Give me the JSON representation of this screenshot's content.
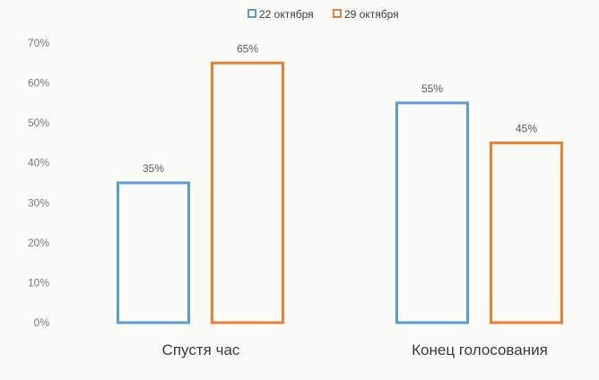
{
  "chart_data": {
    "type": "bar",
    "categories": [
      "Спустя час",
      "Конец голосования"
    ],
    "series": [
      {
        "name": "22 октября",
        "color": "#5b9bd5",
        "values": [
          35,
          55
        ]
      },
      {
        "name": "29 октября",
        "color": "#ed7d31",
        "values": [
          65,
          45
        ]
      }
    ],
    "value_suffix": "%",
    "ylim": [
      0,
      70
    ],
    "yticks": [
      "0%",
      "10%",
      "20%",
      "30%",
      "40%",
      "50%",
      "60%",
      "70%"
    ],
    "grid": false,
    "legend_position": "top-center",
    "bar_style": "outline"
  }
}
